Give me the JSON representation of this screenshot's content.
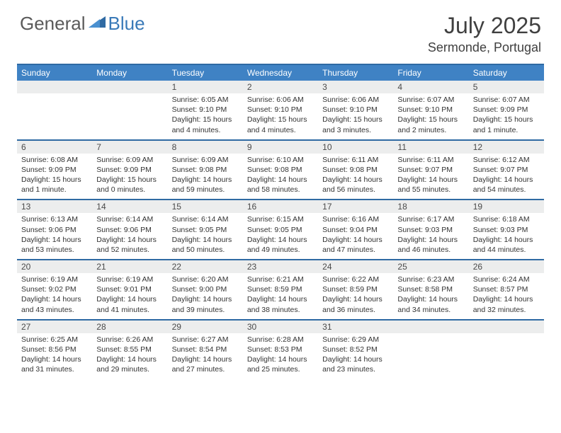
{
  "brand": {
    "general": "General",
    "blue": "Blue"
  },
  "title": "July 2025",
  "location": "Sermonde, Portugal",
  "colors": {
    "header_bg": "#3f82c4",
    "border": "#2f6aa3",
    "daynum_bg": "#eceded",
    "text": "#333333",
    "logo_gray": "#5a5a5a",
    "logo_blue": "#3a7ab8"
  },
  "dow": [
    "Sunday",
    "Monday",
    "Tuesday",
    "Wednesday",
    "Thursday",
    "Friday",
    "Saturday"
  ],
  "weeks": [
    [
      null,
      null,
      {
        "n": "1",
        "sr": "Sunrise: 6:05 AM",
        "ss": "Sunset: 9:10 PM",
        "dl": "Daylight: 15 hours and 4 minutes."
      },
      {
        "n": "2",
        "sr": "Sunrise: 6:06 AM",
        "ss": "Sunset: 9:10 PM",
        "dl": "Daylight: 15 hours and 4 minutes."
      },
      {
        "n": "3",
        "sr": "Sunrise: 6:06 AM",
        "ss": "Sunset: 9:10 PM",
        "dl": "Daylight: 15 hours and 3 minutes."
      },
      {
        "n": "4",
        "sr": "Sunrise: 6:07 AM",
        "ss": "Sunset: 9:10 PM",
        "dl": "Daylight: 15 hours and 2 minutes."
      },
      {
        "n": "5",
        "sr": "Sunrise: 6:07 AM",
        "ss": "Sunset: 9:09 PM",
        "dl": "Daylight: 15 hours and 1 minute."
      }
    ],
    [
      {
        "n": "6",
        "sr": "Sunrise: 6:08 AM",
        "ss": "Sunset: 9:09 PM",
        "dl": "Daylight: 15 hours and 1 minute."
      },
      {
        "n": "7",
        "sr": "Sunrise: 6:09 AM",
        "ss": "Sunset: 9:09 PM",
        "dl": "Daylight: 15 hours and 0 minutes."
      },
      {
        "n": "8",
        "sr": "Sunrise: 6:09 AM",
        "ss": "Sunset: 9:08 PM",
        "dl": "Daylight: 14 hours and 59 minutes."
      },
      {
        "n": "9",
        "sr": "Sunrise: 6:10 AM",
        "ss": "Sunset: 9:08 PM",
        "dl": "Daylight: 14 hours and 58 minutes."
      },
      {
        "n": "10",
        "sr": "Sunrise: 6:11 AM",
        "ss": "Sunset: 9:08 PM",
        "dl": "Daylight: 14 hours and 56 minutes."
      },
      {
        "n": "11",
        "sr": "Sunrise: 6:11 AM",
        "ss": "Sunset: 9:07 PM",
        "dl": "Daylight: 14 hours and 55 minutes."
      },
      {
        "n": "12",
        "sr": "Sunrise: 6:12 AM",
        "ss": "Sunset: 9:07 PM",
        "dl": "Daylight: 14 hours and 54 minutes."
      }
    ],
    [
      {
        "n": "13",
        "sr": "Sunrise: 6:13 AM",
        "ss": "Sunset: 9:06 PM",
        "dl": "Daylight: 14 hours and 53 minutes."
      },
      {
        "n": "14",
        "sr": "Sunrise: 6:14 AM",
        "ss": "Sunset: 9:06 PM",
        "dl": "Daylight: 14 hours and 52 minutes."
      },
      {
        "n": "15",
        "sr": "Sunrise: 6:14 AM",
        "ss": "Sunset: 9:05 PM",
        "dl": "Daylight: 14 hours and 50 minutes."
      },
      {
        "n": "16",
        "sr": "Sunrise: 6:15 AM",
        "ss": "Sunset: 9:05 PM",
        "dl": "Daylight: 14 hours and 49 minutes."
      },
      {
        "n": "17",
        "sr": "Sunrise: 6:16 AM",
        "ss": "Sunset: 9:04 PM",
        "dl": "Daylight: 14 hours and 47 minutes."
      },
      {
        "n": "18",
        "sr": "Sunrise: 6:17 AM",
        "ss": "Sunset: 9:03 PM",
        "dl": "Daylight: 14 hours and 46 minutes."
      },
      {
        "n": "19",
        "sr": "Sunrise: 6:18 AM",
        "ss": "Sunset: 9:03 PM",
        "dl": "Daylight: 14 hours and 44 minutes."
      }
    ],
    [
      {
        "n": "20",
        "sr": "Sunrise: 6:19 AM",
        "ss": "Sunset: 9:02 PM",
        "dl": "Daylight: 14 hours and 43 minutes."
      },
      {
        "n": "21",
        "sr": "Sunrise: 6:19 AM",
        "ss": "Sunset: 9:01 PM",
        "dl": "Daylight: 14 hours and 41 minutes."
      },
      {
        "n": "22",
        "sr": "Sunrise: 6:20 AM",
        "ss": "Sunset: 9:00 PM",
        "dl": "Daylight: 14 hours and 39 minutes."
      },
      {
        "n": "23",
        "sr": "Sunrise: 6:21 AM",
        "ss": "Sunset: 8:59 PM",
        "dl": "Daylight: 14 hours and 38 minutes."
      },
      {
        "n": "24",
        "sr": "Sunrise: 6:22 AM",
        "ss": "Sunset: 8:59 PM",
        "dl": "Daylight: 14 hours and 36 minutes."
      },
      {
        "n": "25",
        "sr": "Sunrise: 6:23 AM",
        "ss": "Sunset: 8:58 PM",
        "dl": "Daylight: 14 hours and 34 minutes."
      },
      {
        "n": "26",
        "sr": "Sunrise: 6:24 AM",
        "ss": "Sunset: 8:57 PM",
        "dl": "Daylight: 14 hours and 32 minutes."
      }
    ],
    [
      {
        "n": "27",
        "sr": "Sunrise: 6:25 AM",
        "ss": "Sunset: 8:56 PM",
        "dl": "Daylight: 14 hours and 31 minutes."
      },
      {
        "n": "28",
        "sr": "Sunrise: 6:26 AM",
        "ss": "Sunset: 8:55 PM",
        "dl": "Daylight: 14 hours and 29 minutes."
      },
      {
        "n": "29",
        "sr": "Sunrise: 6:27 AM",
        "ss": "Sunset: 8:54 PM",
        "dl": "Daylight: 14 hours and 27 minutes."
      },
      {
        "n": "30",
        "sr": "Sunrise: 6:28 AM",
        "ss": "Sunset: 8:53 PM",
        "dl": "Daylight: 14 hours and 25 minutes."
      },
      {
        "n": "31",
        "sr": "Sunrise: 6:29 AM",
        "ss": "Sunset: 8:52 PM",
        "dl": "Daylight: 14 hours and 23 minutes."
      },
      null,
      null
    ]
  ]
}
